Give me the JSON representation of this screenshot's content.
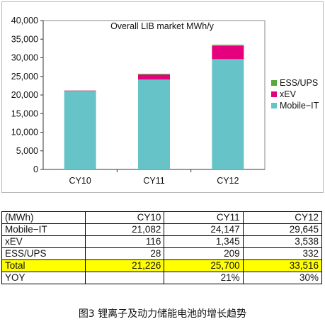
{
  "chart_data": {
    "type": "bar",
    "stacked": true,
    "title": "Overall LIB market MWh/y",
    "categories": [
      "CY10",
      "CY11",
      "CY12"
    ],
    "series": [
      {
        "name": "Mobile−IT",
        "color": "#66c4c8",
        "values": [
          21082,
          24147,
          29645
        ]
      },
      {
        "name": "xEV",
        "color": "#e5007e",
        "values": [
          116,
          1345,
          3538
        ]
      },
      {
        "name": "ESS/UPS",
        "color": "#58a83c",
        "values": [
          28,
          209,
          332
        ]
      }
    ],
    "legend_order": [
      "ESS/UPS",
      "xEV",
      "Mobile−IT"
    ],
    "legend_position": "right",
    "ylim": [
      0,
      40000
    ],
    "yticks": [
      0,
      5000,
      10000,
      15000,
      20000,
      25000,
      30000,
      35000,
      40000
    ],
    "ytick_labels": [
      "0",
      "5,000",
      "10,000",
      "15,000",
      "20,000",
      "25,000",
      "30,000",
      "35,000",
      "40,000"
    ],
    "grid": false
  },
  "table": {
    "header": [
      "(MWh)",
      "CY10",
      "CY11",
      "CY12"
    ],
    "rows": [
      {
        "label": "Mobile−IT",
        "cells": [
          "21,082",
          "24,147",
          "29,645"
        ],
        "highlight": false
      },
      {
        "label": "xEV",
        "cells": [
          "116",
          "1,345",
          "3,538"
        ],
        "highlight": false
      },
      {
        "label": "ESS/UPS",
        "cells": [
          "28",
          "209",
          "332"
        ],
        "highlight": false
      },
      {
        "label": "Total",
        "cells": [
          "21,226",
          "25,700",
          "33,516"
        ],
        "highlight": true
      },
      {
        "label": "YOY",
        "cells": [
          "",
          "21%",
          "30%"
        ],
        "highlight": false
      }
    ]
  },
  "caption": "图3  锂离子及动力储能电池的增长趋势"
}
